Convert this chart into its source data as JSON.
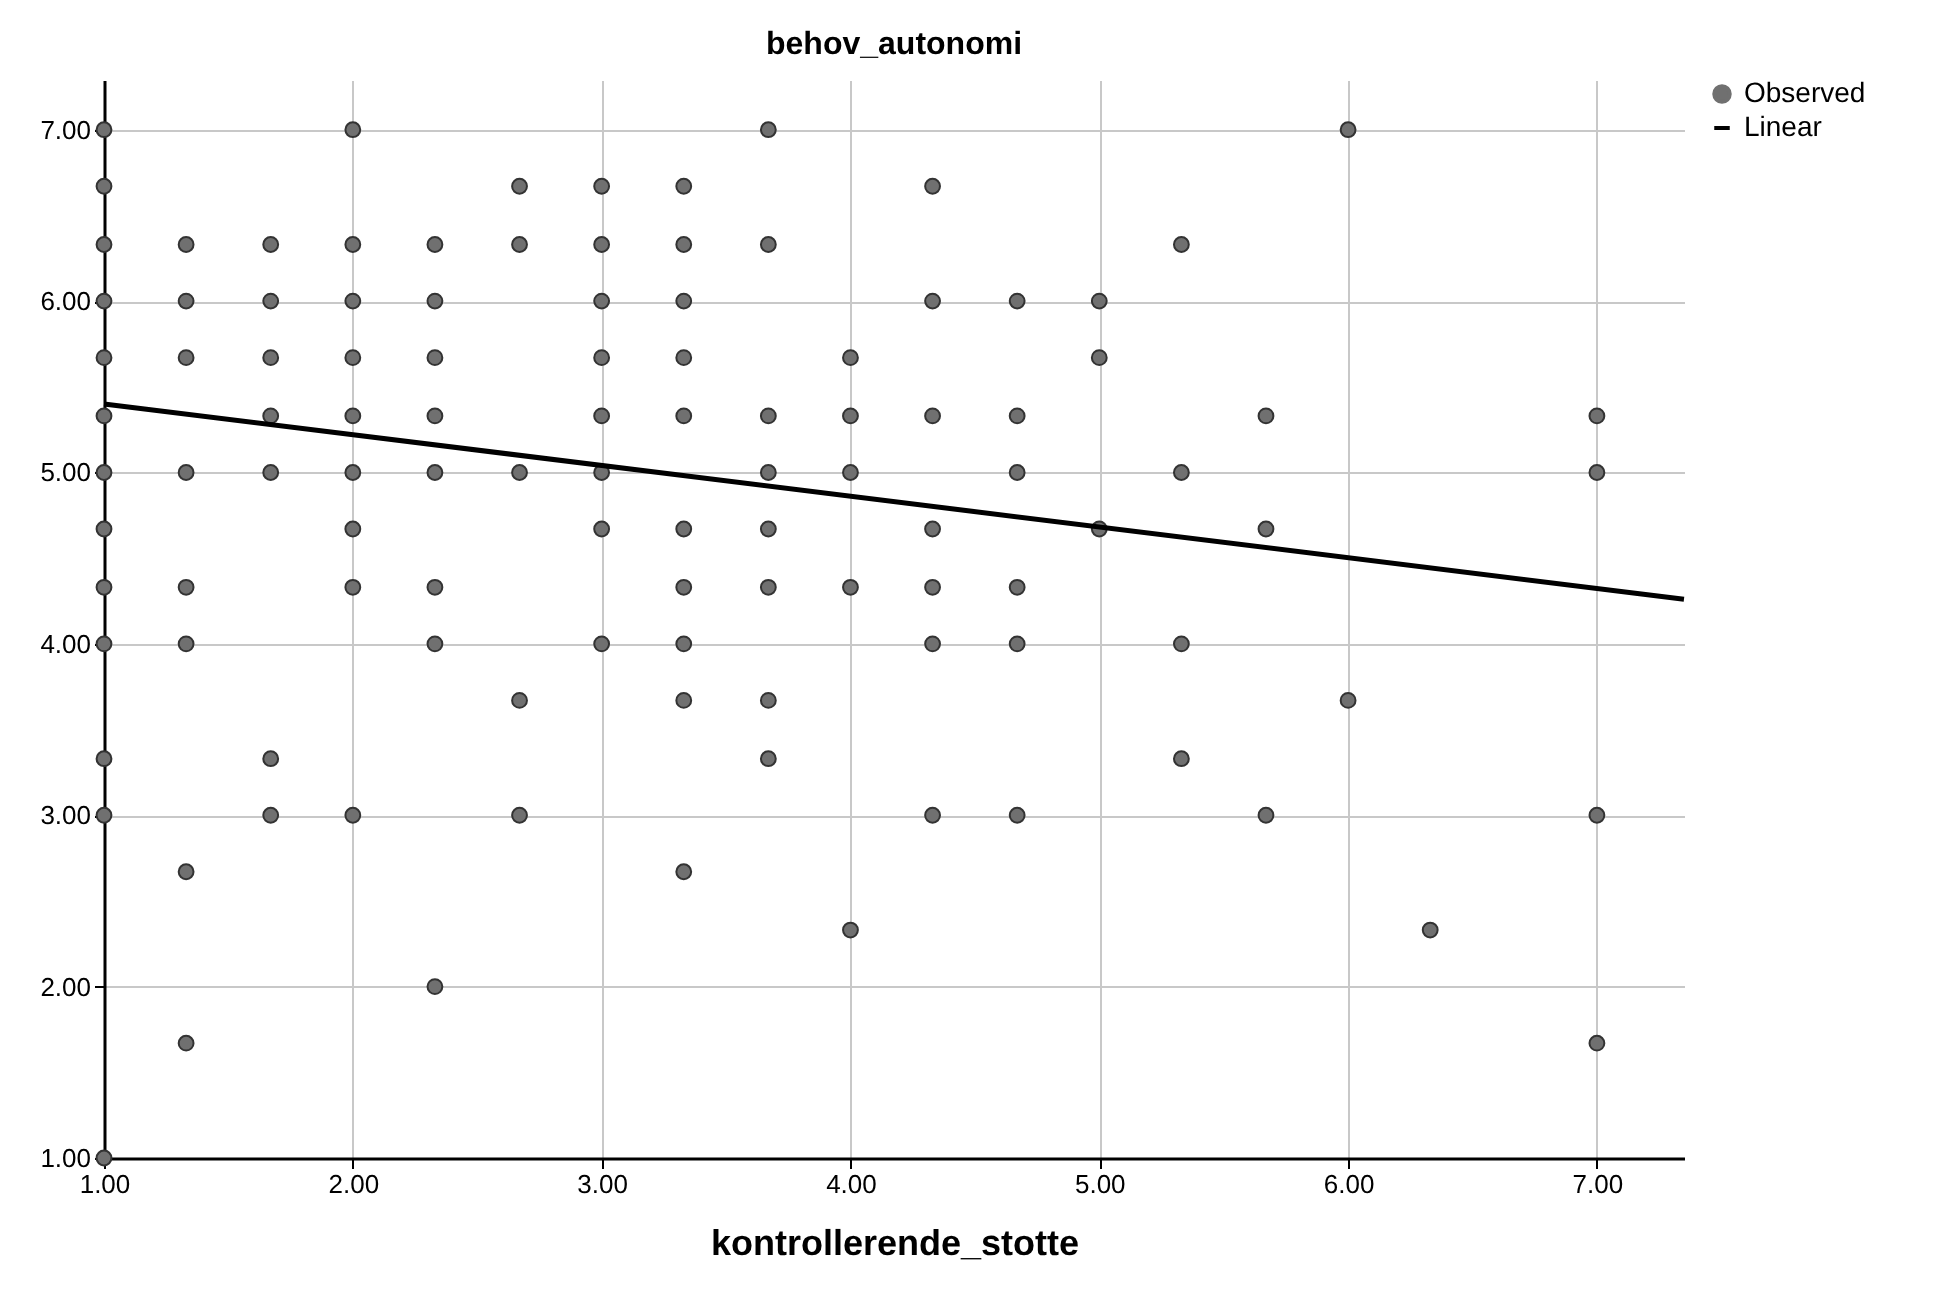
{
  "chart_data": {
    "type": "scatter",
    "title": "behov_autonomi",
    "xlabel": "kontrollerende_stotte",
    "xlim": [
      1,
      7.35
    ],
    "ylim": [
      1,
      7.29
    ],
    "xticks": [
      {
        "value": 1,
        "label": "1.00"
      },
      {
        "value": 2,
        "label": "2.00"
      },
      {
        "value": 3,
        "label": "3.00"
      },
      {
        "value": 4,
        "label": "4.00"
      },
      {
        "value": 5,
        "label": "5.00"
      },
      {
        "value": 6,
        "label": "6.00"
      },
      {
        "value": 7,
        "label": "7.00"
      }
    ],
    "yticks": [
      {
        "value": 1,
        "label": "1.00"
      },
      {
        "value": 2,
        "label": "2.00"
      },
      {
        "value": 3,
        "label": "3.00"
      },
      {
        "value": 4,
        "label": "4.00"
      },
      {
        "value": 5,
        "label": "5.00"
      },
      {
        "value": 6,
        "label": "6.00"
      },
      {
        "value": 7,
        "label": "7.00"
      }
    ],
    "grid": true,
    "legend": "top right",
    "series": [
      {
        "name": "Observed",
        "color": "#707070",
        "marker": "circle",
        "x": [
          1,
          1,
          1,
          1,
          1,
          1,
          1,
          1,
          1,
          1,
          1,
          1,
          1,
          1.33,
          1.33,
          1.33,
          1.33,
          1.33,
          1.33,
          1.33,
          1.33,
          1.67,
          1.67,
          1.67,
          1.67,
          1.67,
          1.67,
          1.67,
          2,
          2,
          2,
          2,
          2,
          2,
          2,
          2,
          2,
          2.33,
          2.33,
          2.33,
          2.33,
          2.33,
          2.33,
          2.33,
          2.33,
          2.67,
          2.67,
          2.67,
          2.67,
          2.67,
          3,
          3,
          3,
          3,
          3,
          3,
          3,
          3,
          3.33,
          3.33,
          3.33,
          3.33,
          3.33,
          3.33,
          3.33,
          3.33,
          3.33,
          3.33,
          3.67,
          3.67,
          3.67,
          3.67,
          3.67,
          3.67,
          3.67,
          3.67,
          4,
          4,
          4,
          4,
          4,
          4.33,
          4.33,
          4.33,
          4.33,
          4.33,
          4.33,
          4.33,
          4.67,
          4.67,
          4.67,
          4.67,
          4.67,
          4.67,
          5,
          5,
          5,
          5.33,
          5.33,
          5.33,
          5.33,
          5.67,
          5.67,
          5.67,
          6,
          6,
          6.33,
          7,
          7,
          7,
          7
        ],
        "values": [
          7,
          6.67,
          6.33,
          6,
          5.67,
          5.33,
          5,
          4.67,
          4.33,
          4,
          3.33,
          3,
          1,
          6.33,
          6,
          5.67,
          5,
          4.33,
          4,
          2.67,
          1.67,
          6.33,
          6,
          5.67,
          5.33,
          5,
          3.33,
          3,
          7,
          6.33,
          6,
          5.67,
          5.33,
          5,
          4.67,
          4.33,
          3,
          6.33,
          6,
          5.67,
          5.33,
          5,
          4.33,
          4,
          2,
          6.67,
          6.33,
          5,
          3.67,
          3,
          6.67,
          6.33,
          6,
          5.67,
          5.33,
          5,
          4.67,
          4,
          6.67,
          6.33,
          6,
          5.67,
          5.33,
          4.67,
          4.33,
          4,
          3.67,
          2.67,
          7,
          6.33,
          5.33,
          5,
          4.67,
          4.33,
          3.67,
          3.33,
          5.67,
          5.33,
          5,
          4.33,
          2.33,
          6.67,
          6,
          5.33,
          4.67,
          4.33,
          4,
          3,
          6,
          5.33,
          5,
          4.33,
          4,
          3,
          6,
          5.67,
          4.67,
          6.33,
          5,
          4,
          3.33,
          5.33,
          4.67,
          3,
          7,
          3.67,
          2.33,
          5.33,
          5,
          3,
          1.67
        ]
      },
      {
        "name": "Linear",
        "type": "line",
        "color": "#000000",
        "x": [
          1,
          7.35
        ],
        "values": [
          5.4,
          4.26
        ]
      }
    ]
  }
}
